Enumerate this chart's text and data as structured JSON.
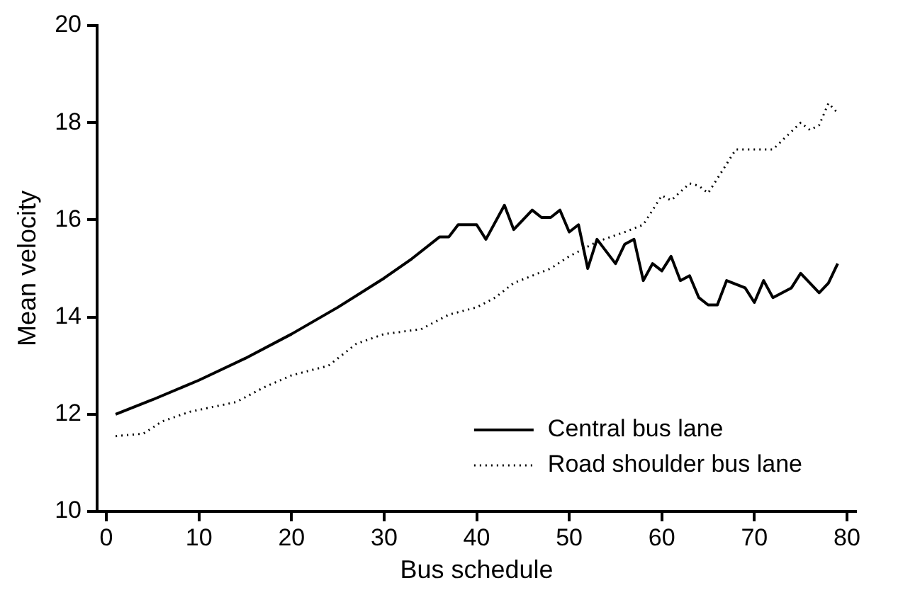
{
  "chart_data": {
    "type": "line",
    "xlabel": "Bus schedule",
    "ylabel": "Mean velocity",
    "xlim": [
      -1,
      81
    ],
    "xticks": [
      0,
      10,
      20,
      30,
      40,
      50,
      60,
      70,
      80
    ],
    "ylim": [
      10,
      20
    ],
    "yticks": [
      10,
      12,
      14,
      16,
      18,
      20
    ],
    "grid": false,
    "legend": "bottom right",
    "marker": "none",
    "series": [
      {
        "name": "Central bus lane",
        "color": "#000000",
        "line_style": "solid",
        "x": [
          1,
          5,
          10,
          15,
          20,
          25,
          30,
          33,
          36,
          37,
          38,
          40,
          41,
          43,
          44,
          46,
          47,
          48,
          49,
          50,
          51,
          52,
          53,
          55,
          56,
          57,
          58,
          59,
          60,
          61,
          62,
          63,
          64,
          65,
          66,
          67,
          69,
          70,
          71,
          72,
          74,
          75,
          77,
          78,
          79
        ],
        "values": [
          12.0,
          12.3,
          12.7,
          13.15,
          13.65,
          14.2,
          14.8,
          15.2,
          15.65,
          15.65,
          15.9,
          15.9,
          15.6,
          16.3,
          15.8,
          16.2,
          16.05,
          16.05,
          16.2,
          15.75,
          15.9,
          15.0,
          15.6,
          15.1,
          15.5,
          15.6,
          14.75,
          15.1,
          14.95,
          15.25,
          14.75,
          14.85,
          14.4,
          14.25,
          14.25,
          14.75,
          14.6,
          14.3,
          14.75,
          14.4,
          14.6,
          14.9,
          14.5,
          14.7,
          15.1
        ]
      },
      {
        "name": "Road shoulder bus lane",
        "color": "#000000",
        "line_style": "dotted",
        "x": [
          1,
          4,
          6,
          9,
          14,
          17,
          20,
          22,
          24,
          27,
          30,
          34,
          37,
          40,
          42,
          44,
          48,
          50,
          53,
          56,
          58,
          60,
          61,
          63,
          64,
          65,
          66,
          68,
          72,
          75,
          76,
          77,
          78,
          79
        ],
        "values": [
          11.55,
          11.6,
          11.85,
          12.05,
          12.25,
          12.55,
          12.8,
          12.9,
          13.0,
          13.45,
          13.65,
          13.75,
          14.05,
          14.2,
          14.4,
          14.7,
          15.0,
          15.25,
          15.55,
          15.75,
          15.9,
          16.5,
          16.4,
          16.75,
          16.7,
          16.55,
          16.85,
          17.45,
          17.45,
          18.0,
          17.85,
          17.95,
          18.4,
          18.2
        ]
      }
    ]
  }
}
